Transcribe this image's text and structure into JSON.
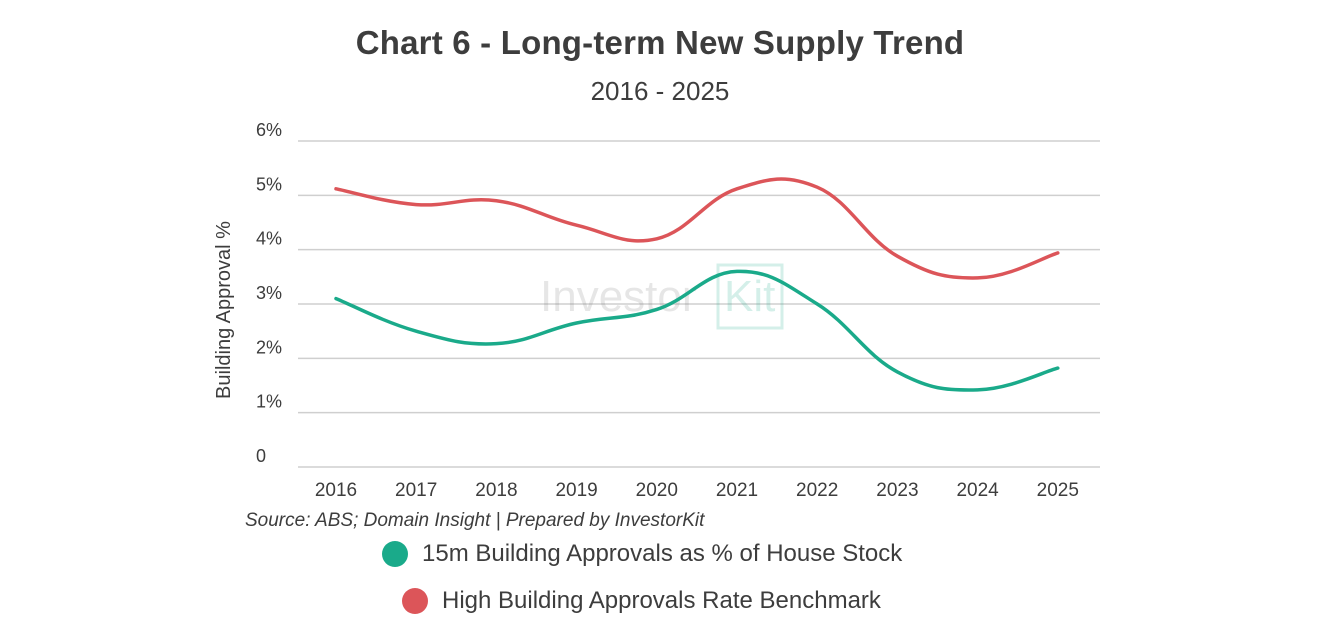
{
  "chart_data": {
    "type": "line",
    "title": "Chart 6 - Long-term New Supply Trend",
    "subtitle": "2016 - 2025",
    "ylabel": "Building Approval %",
    "xlabel": "",
    "ylim": [
      0,
      6
    ],
    "y_ticks": [
      {
        "value": 0,
        "label": "0"
      },
      {
        "value": 1,
        "label": "1%"
      },
      {
        "value": 2,
        "label": "2%"
      },
      {
        "value": 3,
        "label": "3%"
      },
      {
        "value": 4,
        "label": "4%"
      },
      {
        "value": 5,
        "label": "5%"
      },
      {
        "value": 6,
        "label": "6%"
      }
    ],
    "grid": true,
    "categories": [
      "2016",
      "2017",
      "2018",
      "2019",
      "2020",
      "2021",
      "2022",
      "2023",
      "2024",
      "2025"
    ],
    "series": [
      {
        "name": "15m Building Approvals as % of House Stock",
        "color": "#1aaa8a",
        "values": [
          3.1,
          2.5,
          2.27,
          2.65,
          2.9,
          3.6,
          3.0,
          1.75,
          1.42,
          1.82
        ]
      },
      {
        "name": "High Building Approvals Rate Benchmark",
        "color": "#dc5559",
        "values": [
          5.12,
          4.83,
          4.9,
          4.45,
          4.2,
          5.12,
          5.15,
          3.88,
          3.48,
          3.94
        ]
      }
    ],
    "legend_position": "bottom-center",
    "source": "Source: ABS; Domain Insight | Prepared by InvestorKit",
    "watermark": "InvestorKit"
  }
}
